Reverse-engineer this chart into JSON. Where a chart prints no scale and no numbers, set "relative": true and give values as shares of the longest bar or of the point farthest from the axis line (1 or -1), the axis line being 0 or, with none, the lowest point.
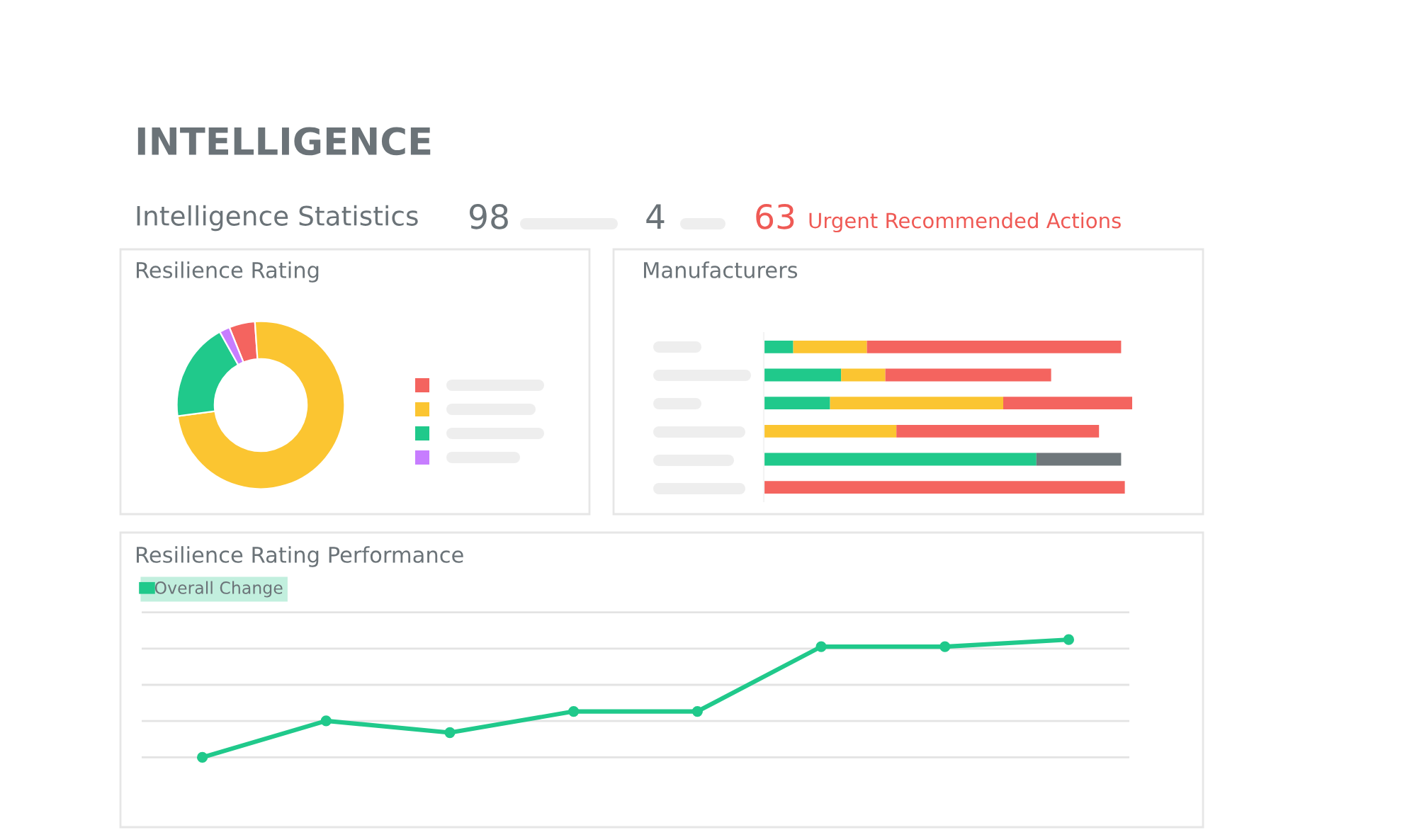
{
  "chart_data": [
    {
      "type": "other",
      "title": "INTELLIGENCE",
      "subtitle": "Intelligence Statistics",
      "annotations": [
        "98",
        "4",
        "63",
        "Urgent Recommended Actions"
      ]
    },
    {
      "type": "donut",
      "title": "Resilience Rating",
      "categories": [
        null,
        null,
        null,
        null
      ],
      "values": [
        5,
        74,
        19,
        2
      ],
      "colors": [
        "#f4645f",
        "#fbc531",
        "#20c98b",
        "#c77dff"
      ]
    },
    {
      "type": "bar",
      "title": "Manufacturers",
      "orientation": "horizontal",
      "stacked": true,
      "relative": true,
      "categories": [
        null,
        null,
        null,
        null,
        null,
        null
      ],
      "series": [
        {
          "color": "#20c98b",
          "values": [
            0.08,
            0.21,
            0.18,
            null,
            0.74,
            null
          ]
        },
        {
          "color": "#fbc531",
          "values": [
            0.2,
            0.12,
            0.47,
            0.36,
            null,
            null
          ]
        },
        {
          "color": "#f4645f",
          "values": [
            0.69,
            0.45,
            0.35,
            0.55,
            null,
            0.98
          ]
        },
        {
          "color": "#6f777b",
          "values": [
            null,
            null,
            null,
            null,
            0.23,
            null
          ]
        }
      ]
    },
    {
      "type": "line",
      "title": "Resilience Rating Performance",
      "relative": true,
      "categories": [
        null,
        null,
        null,
        null,
        null,
        null,
        null,
        null
      ],
      "grid": "y",
      "legend": "top left",
      "marker": "circle",
      "series": [
        {
          "name": "Overall Change",
          "color": "#20c98b",
          "values": [
            0,
            0.31,
            0.21,
            0.39,
            0.39,
            0.94,
            0.94,
            1
          ]
        }
      ]
    }
  ]
}
